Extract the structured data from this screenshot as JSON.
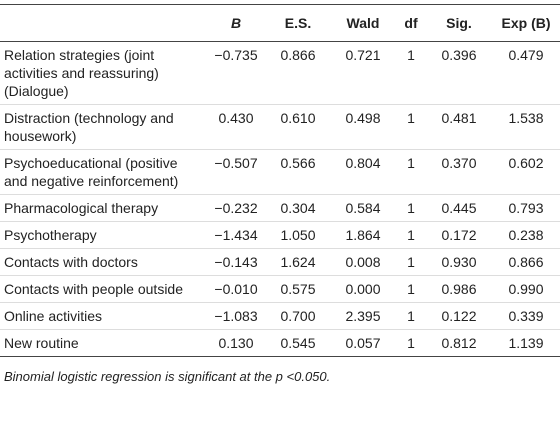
{
  "table": {
    "header": [
      "",
      "B",
      "E.S.",
      "Wald",
      "df",
      "Sig.",
      "Exp (B)"
    ],
    "rows": [
      [
        "Relation strategies (joint activities and reassuring) (Dialogue)",
        "−0.735",
        "0.866",
        "0.721",
        "1",
        "0.396",
        "0.479"
      ],
      [
        "Distraction (technology and housework)",
        "0.430",
        "0.610",
        "0.498",
        "1",
        "0.481",
        "1.538"
      ],
      [
        "Psychoeducational (positive and negative reinforcement)",
        "−0.507",
        "0.566",
        "0.804",
        "1",
        "0.370",
        "0.602"
      ],
      [
        "Pharmacological therapy",
        "−0.232",
        "0.304",
        "0.584",
        "1",
        "0.445",
        "0.793"
      ],
      [
        "Psychotherapy",
        "−1.434",
        "1.050",
        "1.864",
        "1",
        "0.172",
        "0.238"
      ],
      [
        "Contacts with doctors",
        "−0.143",
        "1.624",
        "0.008",
        "1",
        "0.930",
        "0.866"
      ],
      [
        "Contacts with people outside",
        "−0.010",
        "0.575",
        "0.000",
        "1",
        "0.986",
        "0.990"
      ],
      [
        "Online activities",
        "−1.083",
        "0.700",
        "2.395",
        "1",
        "0.122",
        "0.339"
      ],
      [
        "New routine",
        "0.130",
        "0.545",
        "0.057",
        "1",
        "0.812",
        "1.139"
      ]
    ],
    "footnote": "Binomial logistic regression is significant at the p <0.050."
  }
}
